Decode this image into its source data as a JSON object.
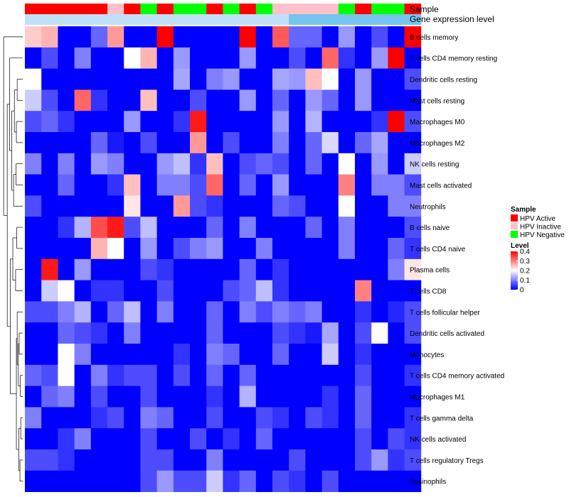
{
  "chart_data": {
    "type": "heatmap",
    "annotation_rows": [
      "Sample",
      "Gene expression level"
    ],
    "samples": [
      "HPV Active",
      "HPV Active",
      "HPV Active",
      "HPV Active",
      "HPV Active",
      "HPV Inactive",
      "HPV Active",
      "HPV Negative",
      "HPV Active",
      "HPV Negative",
      "HPV Negative",
      "HPV Active",
      "HPV Negative",
      "HPV Active",
      "HPV Negative",
      "HPV Inactive",
      "HPV Inactive",
      "HPV Inactive",
      "HPV Inactive",
      "HPV Negative",
      "HPV Active",
      "HPV Negative",
      "HPV Negative",
      "HPV Active"
    ],
    "gene_expression": [
      "light",
      "light",
      "light",
      "light",
      "light",
      "light",
      "light",
      "light",
      "light",
      "light",
      "light",
      "light",
      "light",
      "light",
      "light",
      "light",
      "dark",
      "dark",
      "dark",
      "dark",
      "dark",
      "dark",
      "dark",
      "dark"
    ],
    "rows": [
      "B cells memory",
      "T cells CD4 memory resting",
      "Dendritic cells resting",
      "Mast cells resting",
      "Macrophages M0",
      "Macrophages M2",
      "NK cells resting",
      "Mast cells activated",
      "Neutrophils",
      "B cells naive",
      "T cells CD4 naive",
      "Plasma cells",
      "T cells CD8",
      "T cells follicular helper",
      "Dendritic cells activated",
      "Monocytes",
      "T cells CD4 memory activated",
      "Macrophages M1",
      "T cells gamma delta",
      "NK cells activated",
      "T cells regulatory  Tregs",
      "Eosinophils"
    ],
    "values": [
      [
        0.24,
        0.26,
        0,
        0,
        0.08,
        0.28,
        0,
        0,
        0.4,
        0,
        0,
        0,
        0,
        0.4,
        0,
        0.33,
        0.08,
        0.08,
        0,
        0.12,
        0,
        0.06,
        0,
        0.4
      ],
      [
        0,
        0.06,
        0,
        0.1,
        0,
        0,
        0.2,
        0.26,
        0,
        0.12,
        0,
        0,
        0,
        0.12,
        0,
        0,
        0.06,
        0,
        0.32,
        0.04,
        0,
        0.12,
        0.4,
        0
      ],
      [
        0.2,
        0,
        0,
        0,
        0,
        0,
        0,
        0,
        0,
        0.13,
        0,
        0.1,
        0.12,
        0,
        0,
        0.13,
        0.12,
        0.25,
        0.2,
        0,
        0.12,
        0,
        0,
        0.06
      ],
      [
        0.16,
        0.06,
        0,
        0.32,
        0.04,
        0,
        0,
        0.25,
        0,
        0,
        0.06,
        0,
        0,
        0.12,
        0,
        0.08,
        0,
        0.12,
        0.08,
        0,
        0.12,
        0,
        0,
        0
      ],
      [
        0.06,
        0.08,
        0.04,
        0,
        0,
        0,
        0.12,
        0,
        0,
        0.04,
        0.38,
        0,
        0,
        0,
        0,
        0.12,
        0,
        0.14,
        0,
        0,
        0,
        0.04,
        0.4,
        0.06
      ],
      [
        0,
        0,
        0,
        0,
        0.08,
        0.02,
        0,
        0.06,
        0,
        0,
        0.28,
        0,
        0.06,
        0,
        0,
        0.1,
        0,
        0.08,
        0.17,
        0,
        0.08,
        0.13,
        0,
        0
      ],
      [
        0.1,
        0,
        0.1,
        0,
        0.12,
        0.1,
        0,
        0,
        0.12,
        0.15,
        0.04,
        0.25,
        0,
        0.06,
        0.08,
        0.06,
        0,
        0.08,
        0,
        0.2,
        0,
        0.12,
        0,
        0.16
      ],
      [
        0,
        0,
        0.08,
        0,
        0,
        0.04,
        0.25,
        0,
        0.1,
        0.1,
        0.06,
        0.32,
        0,
        0.08,
        0,
        0.12,
        0,
        0,
        0,
        0.3,
        0,
        0.1,
        0.1,
        0.06
      ],
      [
        0.06,
        0,
        0,
        0,
        0,
        0,
        0.22,
        0,
        0,
        0.28,
        0.06,
        0.04,
        0,
        0,
        0,
        0.08,
        0.06,
        0,
        0,
        0.2,
        0,
        0,
        0.1,
        0.1
      ],
      [
        0,
        0,
        0.04,
        0.14,
        0.34,
        0.38,
        0.06,
        0.15,
        0,
        0,
        0,
        0.08,
        0,
        0.1,
        0,
        0,
        0,
        0.08,
        0,
        0.1,
        0,
        0,
        0,
        0.06
      ],
      [
        0,
        0,
        0,
        0,
        0.26,
        0.2,
        0,
        0.12,
        0,
        0.06,
        0.1,
        0.12,
        0,
        0,
        0.1,
        0,
        0,
        0,
        0,
        0.1,
        0,
        0,
        0.08,
        0.04
      ],
      [
        0,
        0.38,
        0,
        0.12,
        0,
        0,
        0,
        0.06,
        0.04,
        0,
        0,
        0,
        0,
        0.08,
        0,
        0.04,
        0,
        0,
        0,
        0,
        0,
        0,
        0.1,
        0.22
      ],
      [
        0,
        0.16,
        0.2,
        0,
        0.04,
        0.04,
        0,
        0,
        0.06,
        0,
        0,
        0,
        0.06,
        0.08,
        0.15,
        0.04,
        0,
        0,
        0,
        0,
        0.3,
        0,
        0,
        0
      ],
      [
        0.06,
        0.06,
        0.1,
        0.14,
        0,
        0.08,
        0.15,
        0,
        0.1,
        0,
        0,
        0.08,
        0,
        0.1,
        0.06,
        0.1,
        0.08,
        0.1,
        0,
        0,
        0.04,
        0,
        0.03,
        0.06
      ],
      [
        0,
        0,
        0.08,
        0.06,
        0.04,
        0,
        0.1,
        0,
        0,
        0,
        0,
        0.08,
        0,
        0,
        0,
        0.06,
        0.04,
        0.02,
        0.13,
        0,
        0.06,
        0.2,
        0,
        0.06
      ],
      [
        0,
        0,
        0.2,
        0.1,
        0,
        0,
        0,
        0,
        0,
        0.04,
        0,
        0.1,
        0.08,
        0,
        0,
        0.08,
        0,
        0,
        0.16,
        0,
        0.04,
        0,
        0,
        0
      ],
      [
        0.08,
        0.06,
        0.2,
        0,
        0.1,
        0.04,
        0.06,
        0.06,
        0,
        0.06,
        0,
        0.08,
        0,
        0.08,
        0,
        0,
        0,
        0,
        0,
        0,
        0.06,
        0,
        0,
        0.04
      ],
      [
        0,
        0.08,
        0.1,
        0,
        0.06,
        0,
        0,
        0.06,
        0,
        0,
        0,
        0.04,
        0,
        0.14,
        0,
        0,
        0,
        0,
        0.04,
        0,
        0.08,
        0,
        0,
        0
      ],
      [
        0.1,
        0,
        0,
        0,
        0.04,
        0.06,
        0,
        0.1,
        0.08,
        0,
        0,
        0.06,
        0,
        0,
        0.06,
        0.04,
        0,
        0.06,
        0.04,
        0,
        0.08,
        0,
        0,
        0.04
      ],
      [
        0,
        0,
        0.04,
        0.1,
        0,
        0,
        0,
        0.06,
        0,
        0,
        0.06,
        0,
        0.04,
        0,
        0.08,
        0,
        0,
        0,
        0,
        0,
        0.06,
        0,
        0.06,
        0.04
      ],
      [
        0.06,
        0.06,
        0.04,
        0,
        0,
        0,
        0,
        0.06,
        0.06,
        0,
        0,
        0.1,
        0,
        0,
        0,
        0,
        0.06,
        0,
        0,
        0,
        0.06,
        0.12,
        0.04,
        0.06
      ],
      [
        0,
        0,
        0,
        0,
        0,
        0,
        0,
        0.06,
        0.12,
        0.06,
        0.06,
        0.16,
        0.04,
        0.08,
        0,
        0.06,
        0.04,
        0,
        0.06,
        0,
        0,
        0,
        0,
        0
      ]
    ],
    "colorscale": {
      "min": 0,
      "max": 0.4,
      "colors": [
        "#0000ff",
        "#ffffff",
        "#ff0000"
      ]
    },
    "annotation_colors": {
      "HPV Active": "#ff0000",
      "HPV Inactive": "#ffc0cb",
      "HPV Negative": "#00ff00",
      "light": "#bfe0f8",
      "dark": "#76c4f0"
    },
    "legend": {
      "sample_title": "Sample",
      "sample_entries": [
        "HPV Active",
        "HPV Inactive",
        "HPV Negative"
      ],
      "level_title": "Level",
      "level_ticks": [
        "0.4",
        "0.3",
        "0.2",
        "0.1",
        "0"
      ],
      "level_tick_values": [
        0.4,
        0.3,
        0.2,
        0.1,
        0
      ]
    }
  }
}
